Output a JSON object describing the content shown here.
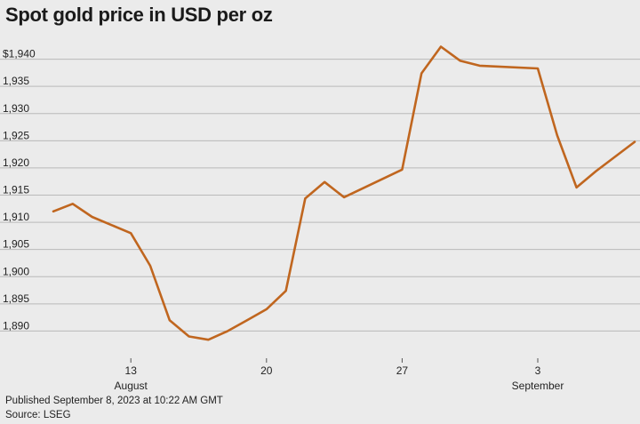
{
  "chart_data": {
    "type": "line",
    "title": "Spot gold price in USD per oz",
    "ylim": [
      1885,
      1945
    ],
    "yticks": [
      {
        "value": 1890,
        "label": "1,890"
      },
      {
        "value": 1895,
        "label": "1,895"
      },
      {
        "value": 1900,
        "label": "1,900"
      },
      {
        "value": 1905,
        "label": "1,905"
      },
      {
        "value": 1910,
        "label": "1,910"
      },
      {
        "value": 1915,
        "label": "1,915"
      },
      {
        "value": 1920,
        "label": "1,920"
      },
      {
        "value": 1925,
        "label": "1,925"
      },
      {
        "value": 1930,
        "label": "1,930"
      },
      {
        "value": 1935,
        "label": "1,935"
      },
      {
        "value": 1940,
        "label": "$1,940"
      }
    ],
    "xlim": [
      "2023-08-09",
      "2023-09-08"
    ],
    "xticks": [
      {
        "date": "2023-08-13",
        "label": "13",
        "sublabel": "August"
      },
      {
        "date": "2023-08-20",
        "label": "20",
        "sublabel": ""
      },
      {
        "date": "2023-08-27",
        "label": "27",
        "sublabel": ""
      },
      {
        "date": "2023-09-03",
        "label": "3",
        "sublabel": "September"
      }
    ],
    "series": [
      {
        "color": "#c0661f",
        "points": [
          {
            "x": "2023-08-09",
            "y": 1912.0
          },
          {
            "x": "2023-08-10",
            "y": 1913.4
          },
          {
            "x": "2023-08-11",
            "y": 1911.0
          },
          {
            "x": "2023-08-13",
            "y": 1908.0
          },
          {
            "x": "2023-08-14",
            "y": 1902.0
          },
          {
            "x": "2023-08-15",
            "y": 1892.0
          },
          {
            "x": "2023-08-16",
            "y": 1889.0
          },
          {
            "x": "2023-08-17",
            "y": 1888.4
          },
          {
            "x": "2023-08-18",
            "y": 1890.0
          },
          {
            "x": "2023-08-19",
            "y": 1892.0
          },
          {
            "x": "2023-08-20",
            "y": 1894.0
          },
          {
            "x": "2023-08-21",
            "y": 1897.4
          },
          {
            "x": "2023-08-22",
            "y": 1914.4
          },
          {
            "x": "2023-08-23",
            "y": 1917.4
          },
          {
            "x": "2023-08-24",
            "y": 1914.6
          },
          {
            "x": "2023-08-27",
            "y": 1919.7
          },
          {
            "x": "2023-08-28",
            "y": 1937.4
          },
          {
            "x": "2023-08-29",
            "y": 1942.3
          },
          {
            "x": "2023-08-30",
            "y": 1939.7
          },
          {
            "x": "2023-08-31",
            "y": 1938.8
          },
          {
            "x": "2023-09-03",
            "y": 1938.3
          },
          {
            "x": "2023-09-04",
            "y": 1926.0
          },
          {
            "x": "2023-09-05",
            "y": 1916.4
          },
          {
            "x": "2023-09-06",
            "y": 1919.4
          },
          {
            "x": "2023-09-08",
            "y": 1924.8
          }
        ]
      }
    ],
    "grid": true
  },
  "footer": {
    "published": "Published September 8, 2023 at 10:22 AM GMT",
    "source": "Source: LSEG"
  },
  "colors": {
    "background": "#ebebeb",
    "grid": "#b9b9b9",
    "line": "#c0661f",
    "text": "#222222"
  }
}
